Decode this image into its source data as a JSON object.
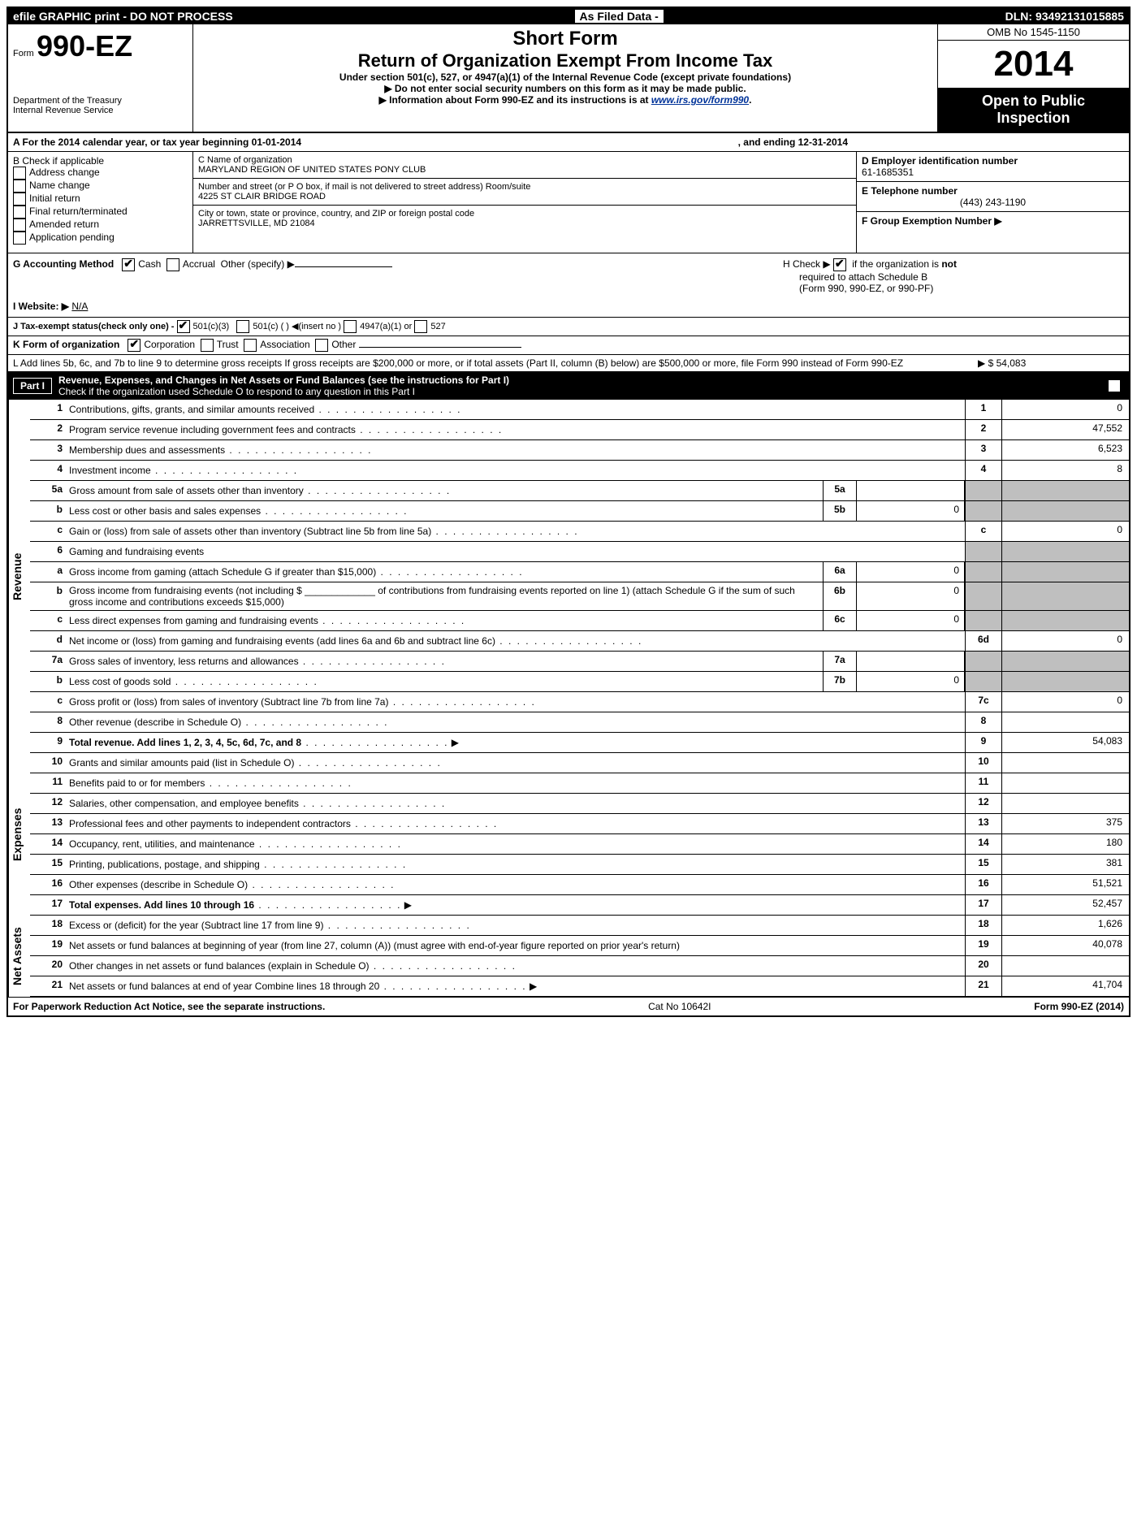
{
  "topbar": {
    "left": "efile GRAPHIC print - DO NOT PROCESS",
    "mid": "As Filed Data -",
    "right": "DLN: 93492131015885"
  },
  "header": {
    "form_prefix": "Form",
    "form_no": "990-EZ",
    "dept1": "Department of the Treasury",
    "dept2": "Internal Revenue Service",
    "short": "Short Form",
    "main": "Return of Organization Exempt From Income Tax",
    "sub": "Under section 501(c), 527, or 4947(a)(1) of the Internal Revenue Code (except private foundations)",
    "note1": "▶ Do not enter social security numbers on this form as it may be made public.",
    "note2_pre": "▶ Information about Form 990-EZ and its instructions is at ",
    "note2_link": "www.irs.gov/form990",
    "omb": "OMB No  1545-1150",
    "year": "2014",
    "inspect1": "Open to Public",
    "inspect2": "Inspection"
  },
  "rowA": {
    "left": "A  For the 2014 calendar year, or tax year beginning 01-01-2014",
    "right": ", and ending 12-31-2014"
  },
  "colB": {
    "title": "B  Check if applicable",
    "items": [
      "Address change",
      "Name change",
      "Initial return",
      "Final return/terminated",
      "Amended return",
      "Application pending"
    ]
  },
  "colC": {
    "c_label": "C Name of organization",
    "c_val": "MARYLAND REGION OF UNITED STATES PONY CLUB",
    "addr_label": "Number and street (or P  O  box, if mail is not delivered to street address) Room/suite",
    "addr_val": "4225 ST CLAIR BRIDGE ROAD",
    "city_label": "City or town, state or province, country, and ZIP or foreign postal code",
    "city_val": "JARRETTSVILLE, MD  21084"
  },
  "colD": {
    "d_label": "D Employer identification number",
    "d_val": "61-1685351",
    "e_label": "E Telephone number",
    "e_val": "(443) 243-1190",
    "f_label": "F Group Exemption Number  ▶"
  },
  "ghi": {
    "g": "G Accounting Method",
    "g_cash": "Cash",
    "g_accrual": "Accrual",
    "g_other": "Other (specify) ▶",
    "h1": "H  Check ▶",
    "h2": "if the organization is ",
    "h_not": "not",
    "h3": "required to attach Schedule B",
    "h4": "(Form 990, 990-EZ, or 990-PF)",
    "i": "I Website: ▶",
    "i_val": "N/A",
    "j": "J Tax-exempt status(check only one) -",
    "j1": "501(c)(3)",
    "j2": "501(c) (   ) ◀(insert no )",
    "j3": "4947(a)(1) or",
    "j4": "527",
    "k": "K Form of organization",
    "k1": "Corporation",
    "k2": "Trust",
    "k3": "Association",
    "k4": "Other",
    "l": "L Add lines 5b, 6c, and 7b to line 9 to determine gross receipts  If gross receipts are $200,000 or more, or if total assets (Part II, column (B) below) are $500,000 or more, file Form 990 instead of Form 990-EZ",
    "l_val": "▶ $ 54,083"
  },
  "part1": {
    "label": "Part I",
    "title": "Revenue, Expenses, and Changes in Net Assets or Fund Balances (see the instructions for Part I)",
    "sub": "Check if the organization used Schedule O to respond to any question in this Part I"
  },
  "sideLabels": {
    "rev": "Revenue",
    "exp": "Expenses",
    "na": "Net Assets"
  },
  "lines": {
    "1": {
      "d": "Contributions, gifts, grants, and similar amounts received",
      "v": "0"
    },
    "2": {
      "d": "Program service revenue including government fees and contracts",
      "v": "47,552"
    },
    "3": {
      "d": "Membership dues and assessments",
      "v": "6,523"
    },
    "4": {
      "d": "Investment income",
      "v": "8"
    },
    "5a": {
      "d": "Gross amount from sale of assets other than inventory",
      "mv": ""
    },
    "5b": {
      "d": "Less  cost or other basis and sales expenses",
      "mv": "0"
    },
    "5c": {
      "d": "Gain or (loss) from sale of assets other than inventory (Subtract line 5b from line 5a)",
      "v": "0"
    },
    "6": {
      "d": "Gaming and fundraising events"
    },
    "6a": {
      "d": "Gross income from gaming (attach Schedule G if greater than $15,000)",
      "mv": "0"
    },
    "6b": {
      "d": "Gross income from fundraising events (not including $ _____________ of contributions from fundraising events reported on line 1) (attach Schedule G if the sum of such gross income and contributions exceeds $15,000)",
      "mv": "0"
    },
    "6c": {
      "d": "Less  direct expenses from gaming and fundraising events",
      "mv": "0"
    },
    "6d": {
      "d": "Net income or (loss) from gaming and fundraising events (add lines 6a and 6b and subtract line 6c)",
      "v": "0"
    },
    "7a": {
      "d": "Gross sales of inventory, less returns and allowances",
      "mv": ""
    },
    "7b": {
      "d": "Less  cost of goods sold",
      "mv": "0"
    },
    "7c": {
      "d": "Gross profit or (loss) from sales of inventory (Subtract line 7b from line 7a)",
      "v": "0"
    },
    "8": {
      "d": "Other revenue (describe in Schedule O)",
      "v": ""
    },
    "9": {
      "d": "Total revenue. Add lines 1, 2, 3, 4, 5c, 6d, 7c, and 8",
      "v": "54,083",
      "bold": true,
      "arrow": true
    },
    "10": {
      "d": "Grants and similar amounts paid (list in Schedule O)",
      "v": ""
    },
    "11": {
      "d": "Benefits paid to or for members",
      "v": ""
    },
    "12": {
      "d": "Salaries, other compensation, and employee benefits",
      "v": ""
    },
    "13": {
      "d": "Professional fees and other payments to independent contractors",
      "v": "375"
    },
    "14": {
      "d": "Occupancy, rent, utilities, and maintenance",
      "v": "180"
    },
    "15": {
      "d": "Printing, publications, postage, and shipping",
      "v": "381"
    },
    "16": {
      "d": "Other expenses (describe in Schedule O)",
      "v": "51,521"
    },
    "17": {
      "d": "Total expenses. Add lines 10 through 16",
      "v": "52,457",
      "bold": true,
      "arrow": true
    },
    "18": {
      "d": "Excess or (deficit) for the year (Subtract line 17 from line 9)",
      "v": "1,626"
    },
    "19": {
      "d": "Net assets or fund balances at beginning of year (from line 27, column (A)) (must agree with end-of-year figure reported on prior year's return)",
      "v": "40,078"
    },
    "20": {
      "d": "Other changes in net assets or fund balances (explain in Schedule O)",
      "v": ""
    },
    "21": {
      "d": "Net assets or fund balances at end of year  Combine lines 18 through 20",
      "v": "41,704",
      "arrow": true
    }
  },
  "footer": {
    "left": "For Paperwork Reduction Act Notice, see the separate instructions.",
    "mid": "Cat No  10642I",
    "right": "Form 990-EZ (2014)"
  }
}
